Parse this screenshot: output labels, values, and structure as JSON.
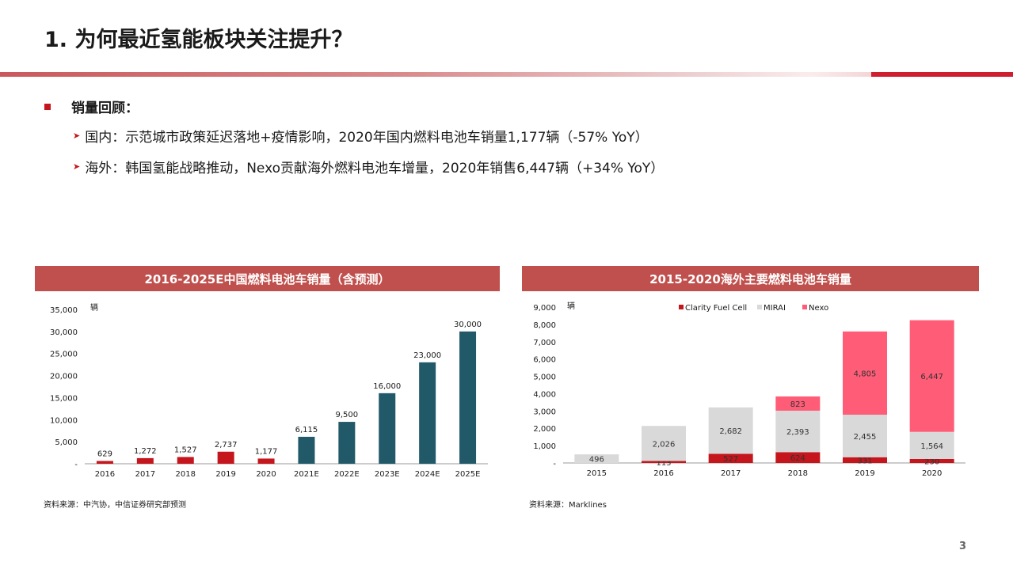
{
  "slide": {
    "title": "1. 为何最近氢能板块关注提升？",
    "bullet_heading": "销量回顾：",
    "bullets": [
      "国内：示范城市政策延迟落地+疫情影响，2020年国内燃料电池车销量1,177辆（-57% YoY）",
      "海外：韩国氢能战略推动，Nexo贡献海外燃料电池车增量，2020年销售6,447辆（+34% YoY）"
    ],
    "page_number": "3",
    "colors": {
      "accent": "#c4161c",
      "header_band": "#c0504d"
    }
  },
  "chart_data": [
    {
      "type": "bar",
      "title": "2016-2025E中国燃料电池车销量（含预测）",
      "ylabel": "辆",
      "categories": [
        "2016",
        "2017",
        "2018",
        "2019",
        "2020",
        "2021E",
        "2022E",
        "2023E",
        "2024E",
        "2025E"
      ],
      "values": [
        629,
        1272,
        1527,
        2737,
        1177,
        6115,
        9500,
        16000,
        23000,
        30000
      ],
      "value_labels": [
        "629",
        "1,272",
        "1,527",
        "2,737",
        "1,177",
        "6,115",
        "9,500",
        "16,000",
        "23,000",
        "30,000"
      ],
      "bar_colors": [
        "#c4161c",
        "#c4161c",
        "#c4161c",
        "#c4161c",
        "#c4161c",
        "#215968",
        "#215968",
        "#215968",
        "#215968",
        "#215968"
      ],
      "yticks": [
        "-",
        "5,000",
        "10,000",
        "15,000",
        "20,000",
        "25,000",
        "30,000",
        "35,000"
      ],
      "ytick_values": [
        0,
        5000,
        10000,
        15000,
        20000,
        25000,
        30000,
        35000
      ],
      "ylim": [
        0,
        35000
      ],
      "grid": false,
      "source": "资料来源：中汽协，中信证券研究部预测"
    },
    {
      "type": "bar",
      "stacked": true,
      "title": "2015-2020海外主要燃料电池车销量",
      "ylabel": "辆",
      "categories": [
        "2015",
        "2016",
        "2017",
        "2018",
        "2019",
        "2020"
      ],
      "series": [
        {
          "name": "Clarity Fuel Cell",
          "color": "#c4161c",
          "values": [
            0,
            113,
            527,
            624,
            331,
            230
          ],
          "labels": [
            "",
            "113",
            "527",
            "624",
            "331",
            "230"
          ]
        },
        {
          "name": "MIRAI",
          "color": "#d9d9d9",
          "values": [
            496,
            2026,
            2682,
            2393,
            2455,
            1564
          ],
          "labels": [
            "496",
            "2,026",
            "2,682",
            "2,393",
            "2,455",
            "1,564"
          ]
        },
        {
          "name": "Nexo",
          "color": "#ff5c77",
          "values": [
            0,
            0,
            0,
            823,
            4805,
            6447
          ],
          "labels": [
            "",
            "",
            "",
            "823",
            "4,805",
            "6,447"
          ]
        }
      ],
      "yticks": [
        "-",
        "1,000",
        "2,000",
        "3,000",
        "4,000",
        "5,000",
        "6,000",
        "7,000",
        "8,000",
        "9,000"
      ],
      "ytick_values": [
        0,
        1000,
        2000,
        3000,
        4000,
        5000,
        6000,
        7000,
        8000,
        9000
      ],
      "ylim": [
        0,
        9000
      ],
      "legend": "top",
      "grid": false,
      "source": "资料来源：Marklines"
    }
  ]
}
